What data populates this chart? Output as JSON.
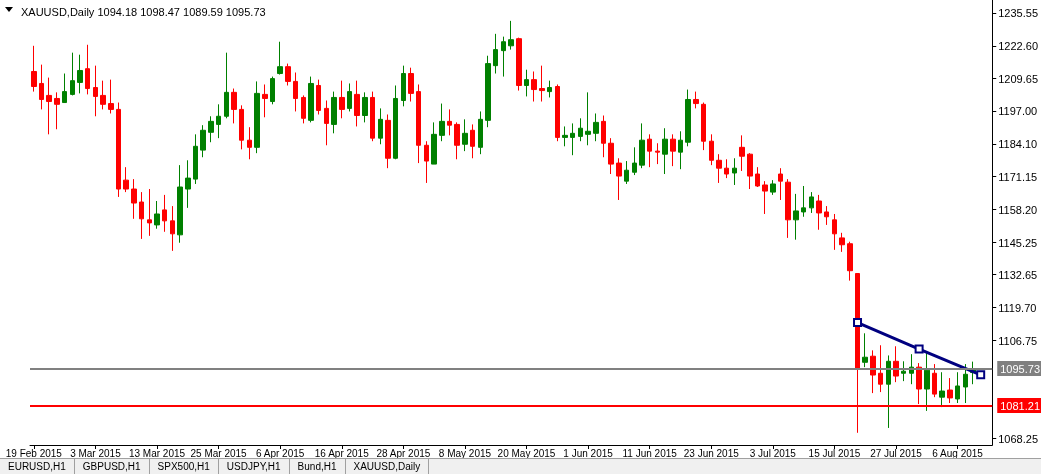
{
  "chart_data": {
    "type": "candlestick",
    "title": "XAUUSD,Daily 1094.18 1098.47 1089.59 1095.73",
    "categories": [
      "19 Feb 2015",
      null,
      null,
      null,
      null,
      null,
      null,
      null,
      "3 Mar 2015",
      null,
      null,
      null,
      null,
      null,
      null,
      null,
      "13 Mar 2015",
      null,
      null,
      null,
      null,
      null,
      null,
      null,
      "25 Mar 2015",
      null,
      null,
      null,
      null,
      null,
      null,
      null,
      "6 Apr 2015",
      null,
      null,
      null,
      null,
      null,
      null,
      null,
      "16 Apr 2015",
      null,
      null,
      null,
      null,
      null,
      null,
      null,
      "28 Apr 2015",
      null,
      null,
      null,
      null,
      null,
      null,
      null,
      "8 May 2015",
      null,
      null,
      null,
      null,
      null,
      null,
      null,
      "20 May 2015",
      null,
      null,
      null,
      null,
      null,
      null,
      null,
      "1 Jun 2015",
      null,
      null,
      null,
      null,
      null,
      null,
      null,
      "11 Jun 2015",
      null,
      null,
      null,
      null,
      null,
      null,
      null,
      "23 Jun 2015",
      null,
      null,
      null,
      null,
      null,
      null,
      null,
      "3 Jul 2015",
      null,
      null,
      null,
      null,
      null,
      null,
      null,
      "15 Jul 2015",
      null,
      null,
      null,
      null,
      null,
      null,
      null,
      "27 Jul 2015",
      null,
      null,
      null,
      null,
      null,
      null,
      null,
      "6 Aug 2015",
      null,
      null,
      null,
      null
    ],
    "series": [
      {
        "ohlc": [
          [
            1212.5,
            1222.6,
            1204.6,
            1206.6
          ],
          [
            1207.8,
            1215.2,
            1197.6,
            1201.5
          ],
          [
            1203.1,
            1210.1,
            1187.8,
            1200.7
          ],
          [
            1201.9,
            1204.3,
            1189.8,
            1199.6
          ],
          [
            1200.3,
            1211.7,
            1200.3,
            1204.6
          ],
          [
            1203.5,
            1219.9,
            1203.1,
            1208.9
          ],
          [
            1208.2,
            1219.1,
            1203.9,
            1212.9
          ],
          [
            1213.6,
            1223.0,
            1203.5,
            1205.8
          ],
          [
            1206.2,
            1214.8,
            1194.9,
            1202.7
          ],
          [
            1203.1,
            1208.9,
            1197.6,
            1199.6
          ],
          [
            1199.9,
            1209.3,
            1196.0,
            1197.6
          ],
          [
            1197.6,
            1200.3,
            1163.2,
            1166.3
          ],
          [
            1169.8,
            1174.9,
            1165.1,
            1166.3
          ],
          [
            1166.3,
            1170.2,
            1154.6,
            1160.8
          ],
          [
            1161.2,
            1165.1,
            1146.7,
            1154.6
          ],
          [
            1154.2,
            1166.3,
            1147.9,
            1153.0
          ],
          [
            1152.2,
            1161.6,
            1150.7,
            1156.5
          ],
          [
            1158.1,
            1164.0,
            1149.5,
            1153.8
          ],
          [
            1153.8,
            1159.6,
            1142.0,
            1148.7
          ],
          [
            1148.3,
            1175.7,
            1145.2,
            1167.1
          ],
          [
            1166.3,
            1177.6,
            1158.9,
            1170.6
          ],
          [
            1170.2,
            1187.8,
            1168.3,
            1183.1
          ],
          [
            1181.6,
            1191.4,
            1178.8,
            1189.4
          ],
          [
            1188.6,
            1194.9,
            1184.7,
            1192.9
          ],
          [
            1191.7,
            1199.6,
            1186.3,
            1194.9
          ],
          [
            1194.9,
            1219.9,
            1194.1,
            1204.3
          ],
          [
            1204.3,
            1205.8,
            1192.1,
            1197.6
          ],
          [
            1197.6,
            1199.2,
            1181.9,
            1185.5
          ],
          [
            1185.5,
            1190.6,
            1178.0,
            1182.7
          ],
          [
            1182.7,
            1208.6,
            1180.4,
            1203.9
          ],
          [
            1203.5,
            1207.4,
            1194.5,
            1201.9
          ],
          [
            1200.7,
            1210.5,
            1199.6,
            1209.7
          ],
          [
            1211.7,
            1224.2,
            1211.3,
            1214.4
          ],
          [
            1214.4,
            1215.6,
            1207.0,
            1208.6
          ],
          [
            1208.6,
            1212.1,
            1196.8,
            1201.9
          ],
          [
            1202.3,
            1203.1,
            1192.1,
            1194.1
          ],
          [
            1193.3,
            1210.5,
            1192.5,
            1207.8
          ],
          [
            1207.0,
            1209.3,
            1195.6,
            1197.2
          ],
          [
            1198.0,
            1201.1,
            1183.5,
            1192.1
          ],
          [
            1191.7,
            1204.6,
            1188.2,
            1202.3
          ],
          [
            1202.3,
            1208.9,
            1194.1,
            1197.6
          ],
          [
            1198.0,
            1207.8,
            1196.8,
            1204.6
          ],
          [
            1203.5,
            1208.9,
            1190.9,
            1195.2
          ],
          [
            1195.2,
            1204.3,
            1192.5,
            1202.3
          ],
          [
            1202.3,
            1204.6,
            1185.1,
            1186.3
          ],
          [
            1186.3,
            1198.0,
            1183.9,
            1193.7
          ],
          [
            1193.3,
            1195.6,
            1174.5,
            1178.4
          ],
          [
            1178.4,
            1207.0,
            1178.0,
            1201.9
          ],
          [
            1201.1,
            1214.8,
            1198.8,
            1211.7
          ],
          [
            1211.7,
            1214.0,
            1200.7,
            1203.9
          ],
          [
            1204.6,
            1207.4,
            1176.5,
            1183.5
          ],
          [
            1183.5,
            1185.1,
            1168.7,
            1177.3
          ],
          [
            1176.1,
            1192.5,
            1176.1,
            1187.8
          ],
          [
            1187.4,
            1199.9,
            1185.1,
            1192.9
          ],
          [
            1192.9,
            1197.6,
            1187.4,
            1191.4
          ],
          [
            1191.7,
            1192.5,
            1178.0,
            1183.5
          ],
          [
            1183.9,
            1193.7,
            1181.2,
            1188.2
          ],
          [
            1189.4,
            1191.7,
            1178.4,
            1183.1
          ],
          [
            1182.7,
            1196.8,
            1180.0,
            1193.7
          ],
          [
            1193.3,
            1218.7,
            1190.6,
            1215.6
          ],
          [
            1214.8,
            1227.3,
            1211.7,
            1221.1
          ],
          [
            1220.7,
            1226.2,
            1210.5,
            1224.2
          ],
          [
            1222.6,
            1232.4,
            1221.1,
            1225.0
          ],
          [
            1225.4,
            1225.8,
            1205.0,
            1207.0
          ],
          [
            1207.0,
            1213.2,
            1202.7,
            1209.3
          ],
          [
            1209.3,
            1212.5,
            1200.7,
            1205.4
          ],
          [
            1205.8,
            1214.8,
            1200.7,
            1205.0
          ],
          [
            1204.6,
            1208.9,
            1202.3,
            1206.2
          ],
          [
            1206.6,
            1207.4,
            1185.1,
            1186.6
          ],
          [
            1186.6,
            1190.9,
            1183.1,
            1187.4
          ],
          [
            1186.6,
            1192.1,
            1179.6,
            1188.2
          ],
          [
            1187.0,
            1194.1,
            1185.1,
            1190.2
          ],
          [
            1187.8,
            1204.3,
            1183.5,
            1189.0
          ],
          [
            1188.2,
            1196.0,
            1185.1,
            1192.5
          ],
          [
            1192.9,
            1195.2,
            1178.8,
            1184.3
          ],
          [
            1184.3,
            1186.3,
            1172.2,
            1176.1
          ],
          [
            1176.5,
            1178.4,
            1162.0,
            1171.4
          ],
          [
            1169.4,
            1177.3,
            1168.3,
            1173.7
          ],
          [
            1172.9,
            1182.7,
            1171.8,
            1176.5
          ],
          [
            1175.7,
            1192.1,
            1174.5,
            1185.5
          ],
          [
            1185.9,
            1187.8,
            1174.9,
            1181.2
          ],
          [
            1181.2,
            1184.3,
            1176.1,
            1180.8
          ],
          [
            1180.0,
            1190.2,
            1172.2,
            1185.9
          ],
          [
            1185.9,
            1187.8,
            1175.3,
            1181.2
          ],
          [
            1180.8,
            1189.0,
            1174.1,
            1185.5
          ],
          [
            1184.7,
            1205.4,
            1183.1,
            1201.5
          ],
          [
            1201.5,
            1204.6,
            1198.0,
            1199.9
          ],
          [
            1199.6,
            1200.3,
            1181.6,
            1185.1
          ],
          [
            1185.1,
            1187.8,
            1175.7,
            1177.6
          ],
          [
            1177.6,
            1180.0,
            1168.7,
            1174.5
          ],
          [
            1174.5,
            1178.0,
            1170.6,
            1172.2
          ],
          [
            1172.6,
            1178.4,
            1167.9,
            1174.5
          ],
          [
            1182.7,
            1187.4,
            1173.4,
            1179.2
          ],
          [
            1180.0,
            1180.4,
            1166.3,
            1171.4
          ],
          [
            1172.2,
            1174.9,
            1167.1,
            1167.5
          ],
          [
            1167.9,
            1169.4,
            1156.5,
            1165.5
          ],
          [
            1165.1,
            1169.8,
            1164.0,
            1168.3
          ],
          [
            1172.2,
            1174.5,
            1162.0,
            1169.4
          ],
          [
            1169.0,
            1170.2,
            1147.1,
            1154.2
          ],
          [
            1154.2,
            1164.4,
            1146.4,
            1157.7
          ],
          [
            1157.3,
            1167.5,
            1155.4,
            1158.9
          ],
          [
            1158.9,
            1165.1,
            1156.9,
            1163.2
          ],
          [
            1161.6,
            1164.0,
            1150.3,
            1156.9
          ],
          [
            1157.3,
            1159.6,
            1152.2,
            1155.4
          ],
          [
            1154.2,
            1156.5,
            1142.4,
            1148.7
          ],
          [
            1147.1,
            1149.1,
            1141.6,
            1144.4
          ],
          [
            1144.8,
            1145.6,
            1130.3,
            1134.2
          ],
          [
            1133.1,
            1133.1,
            1070.5,
            1095.5
          ],
          [
            1098.2,
            1109.6,
            1096.3,
            1100.2
          ],
          [
            1100.6,
            1102.9,
            1086.1,
            1093.2
          ],
          [
            1093.9,
            1104.9,
            1086.5,
            1089.6
          ],
          [
            1089.6,
            1100.9,
            1072.4,
            1098.6
          ],
          [
            1098.6,
            1104.5,
            1090.4,
            1092.8
          ],
          [
            1093.9,
            1098.6,
            1090.8,
            1094.7
          ],
          [
            1093.9,
            1101.4,
            1089.6,
            1096.3
          ],
          [
            1096.3,
            1097.9,
            1081.8,
            1087.7
          ],
          [
            1087.7,
            1102.2,
            1079.1,
            1095.1
          ],
          [
            1093.9,
            1097.5,
            1084.5,
            1085.7
          ],
          [
            1084.5,
            1094.3,
            1080.6,
            1086.9
          ],
          [
            1087.3,
            1092.0,
            1082.2,
            1084.2
          ],
          [
            1083.8,
            1094.3,
            1082.2,
            1088.9
          ],
          [
            1088.5,
            1097.5,
            1082.2,
            1093.5
          ],
          [
            1094.18,
            1098.47,
            1089.59,
            1095.73
          ],
          null,
          null
        ],
        "colors": [
          "#ff0000",
          "#ff0000",
          "#ff0000",
          "#ff0000",
          "#008000",
          "#008000",
          "#008000",
          "#ff0000",
          "#ff0000",
          "#ff0000",
          "#ff0000",
          "#ff0000",
          "#ff0000",
          "#ff0000",
          "#ff0000",
          "#ff0000",
          "#008000",
          "#ff0000",
          "#ff0000",
          "#008000",
          "#008000",
          "#008000",
          "#008000",
          "#008000",
          "#008000",
          "#008000",
          "#ff0000",
          "#ff0000",
          "#ff0000",
          "#008000",
          "#ff0000",
          "#008000",
          "#008000",
          "#ff0000",
          "#ff0000",
          "#ff0000",
          "#008000",
          "#ff0000",
          "#ff0000",
          "#008000",
          "#ff0000",
          "#008000",
          "#ff0000",
          "#008000",
          "#ff0000",
          "#008000",
          "#ff0000",
          "#008000",
          "#008000",
          "#ff0000",
          "#ff0000",
          "#ff0000",
          "#008000",
          "#008000",
          "#ff0000",
          "#ff0000",
          "#008000",
          "#ff0000",
          "#008000",
          "#008000",
          "#008000",
          "#008000",
          "#008000",
          "#ff0000",
          "#008000",
          "#ff0000",
          "#ff0000",
          "#008000",
          "#ff0000",
          "#008000",
          "#008000",
          "#008000",
          "#008000",
          "#008000",
          "#ff0000",
          "#ff0000",
          "#ff0000",
          "#008000",
          "#008000",
          "#008000",
          "#ff0000",
          "#ff0000",
          "#008000",
          "#ff0000",
          "#008000",
          "#008000",
          "#ff0000",
          "#ff0000",
          "#ff0000",
          "#ff0000",
          "#ff0000",
          "#008000",
          "#ff0000",
          "#ff0000",
          "#ff0000",
          "#ff0000",
          "#008000",
          "#ff0000",
          "#ff0000",
          "#008000",
          "#008000",
          "#008000",
          "#ff0000",
          "#ff0000",
          "#ff0000",
          "#ff0000",
          "#ff0000",
          "#ff0000",
          "#008000",
          "#ff0000",
          "#ff0000",
          "#008000",
          "#ff0000",
          "#008000",
          "#008000",
          "#ff0000",
          "#008000",
          "#ff0000",
          "#008000",
          "#ff0000",
          "#008000",
          "#008000",
          "#008000",
          null,
          null
        ]
      },
      {
        "type": "line",
        "color": "#000080",
        "marker": "square",
        "values": [
          null,
          null,
          null,
          null,
          null,
          null,
          null,
          null,
          null,
          null,
          null,
          null,
          null,
          null,
          null,
          null,
          null,
          null,
          null,
          null,
          null,
          null,
          null,
          null,
          null,
          null,
          null,
          null,
          null,
          null,
          null,
          null,
          null,
          null,
          null,
          null,
          null,
          null,
          null,
          null,
          null,
          null,
          null,
          null,
          null,
          null,
          null,
          null,
          null,
          null,
          null,
          null,
          null,
          null,
          null,
          null,
          null,
          null,
          null,
          null,
          null,
          null,
          null,
          null,
          null,
          null,
          null,
          null,
          null,
          null,
          null,
          null,
          null,
          null,
          null,
          null,
          null,
          null,
          null,
          null,
          null,
          null,
          null,
          null,
          null,
          null,
          null,
          null,
          null,
          null,
          null,
          null,
          null,
          null,
          null,
          null,
          null,
          null,
          null,
          null,
          null,
          null,
          null,
          null,
          null,
          null,
          null,
          1113.8,
          null,
          null,
          null,
          null,
          null,
          null,
          null,
          1103.4,
          null,
          null,
          null,
          null,
          null,
          null,
          null,
          1093.3,
          null
        ]
      }
    ],
    "ylim": [
      1065.7,
      1240.6
    ],
    "yticks": [
      {
        "value": 1068.25,
        "label": "1068.25"
      },
      {
        "value": 1106.75,
        "label": "1106.75"
      },
      {
        "value": 1119.7,
        "label": "1119.70"
      },
      {
        "value": 1132.65,
        "label": "1132.65"
      },
      {
        "value": 1145.25,
        "label": "1145.25"
      },
      {
        "value": 1158.2,
        "label": "1158.20"
      },
      {
        "value": 1171.15,
        "label": "1171.15"
      },
      {
        "value": 1184.1,
        "label": "1184.10"
      },
      {
        "value": 1197.0,
        "label": "1197.00"
      },
      {
        "value": 1209.65,
        "label": "1209.65"
      },
      {
        "value": 1222.6,
        "label": "1222.60"
      },
      {
        "value": 1235.55,
        "label": "1235.55"
      }
    ],
    "ref_lines": [
      {
        "axis": "y",
        "value": 1095.73,
        "label": "1095.73",
        "color": "#808080"
      },
      {
        "axis": "y",
        "value": 1081.21,
        "label": "1081.21",
        "color": "#ff0000"
      }
    ],
    "grid": false,
    "annotations": [
      "EURUSD,H1",
      "GBPUSD,H1",
      "SPX500,H1",
      "USDJPY,H1",
      "Bund,H1",
      "XAUUSD,Daily"
    ]
  }
}
